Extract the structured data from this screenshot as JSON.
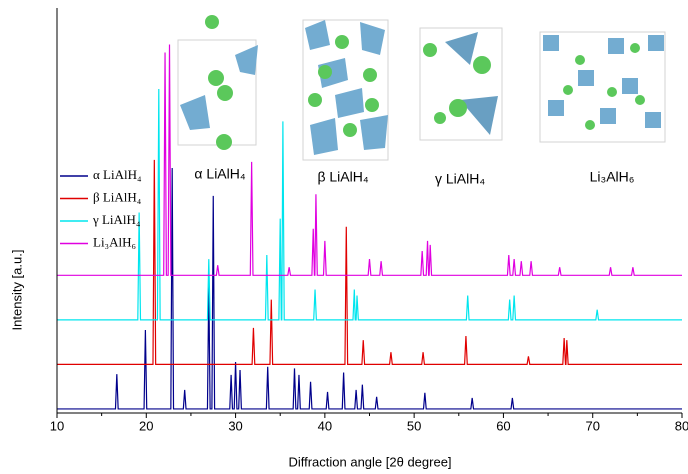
{
  "chart_data": {
    "type": "line",
    "xlabel": "Diffraction angle [2θ degree]",
    "ylabel": "Intensity [a.u.]",
    "xlim": [
      10,
      80
    ],
    "xticks": [
      10,
      20,
      30,
      40,
      50,
      60,
      70,
      80
    ],
    "ylim": [
      0,
      100
    ],
    "legend": "upper left",
    "annotations": [
      "α LiAlH₄",
      "β LiAlH₄",
      "γ LiAlH₄",
      "Li₃AlH₆"
    ],
    "series": [
      {
        "name": "α LiAlH₄",
        "color": "#00008b",
        "x": [
          10,
          16.55,
          16.7,
          16.85,
          19.75,
          19.9,
          20.05,
          22.75,
          22.9,
          23.05,
          24.15,
          24.3,
          24.45,
          26.85,
          27.0,
          27.15,
          27.35,
          27.5,
          27.65,
          29.35,
          29.5,
          29.65,
          29.85,
          30.0,
          30.15,
          30.35,
          30.5,
          30.65,
          33.45,
          33.6,
          33.75,
          36.45,
          36.6,
          36.75,
          36.95,
          37.1,
          37.25,
          38.25,
          38.4,
          38.55,
          40.15,
          40.3,
          40.45,
          41.95,
          42.1,
          42.25,
          43.35,
          43.5,
          43.65,
          44.05,
          44.2,
          44.35,
          45.65,
          45.8,
          45.95,
          51.05,
          51.2,
          51.35,
          56.35,
          56.5,
          56.65,
          60.85,
          61.0,
          61.15,
          80
        ],
        "values": [
          1,
          1,
          9.6,
          1,
          1,
          20.5,
          1,
          1,
          60.5,
          1,
          1,
          5.7,
          1,
          1,
          32,
          1,
          1,
          53.6,
          1,
          1,
          9.4,
          1,
          1,
          12.6,
          1,
          1,
          10.6,
          1,
          1,
          11.4,
          1,
          1,
          11,
          1,
          1,
          9.4,
          1,
          1,
          7.7,
          1,
          1,
          5.2,
          1,
          1,
          10,
          1,
          1,
          5.7,
          1,
          1,
          7,
          1,
          1,
          4,
          1,
          1,
          5,
          1,
          1,
          3.7,
          1,
          1,
          3.7,
          1,
          1
        ]
      },
      {
        "name": "β LiAlH₄",
        "color": "#e00000",
        "x": [
          10,
          20.75,
          20.9,
          21.05,
          31.85,
          32.0,
          32.15,
          33.85,
          34.0,
          34.15,
          42.25,
          42.4,
          42.55,
          44.15,
          44.3,
          44.45,
          47.25,
          47.4,
          47.55,
          50.85,
          51.0,
          51.15,
          55.65,
          55.8,
          55.95,
          62.65,
          62.8,
          62.95,
          66.65,
          66.8,
          66.95,
          67.0,
          67.1,
          67.25,
          80
        ],
        "values": [
          12,
          12,
          62.5,
          12,
          12,
          21,
          12,
          12,
          28,
          12,
          12,
          46,
          12,
          12,
          18,
          12,
          12,
          15,
          12,
          12,
          15,
          12,
          12,
          19,
          12,
          12,
          14,
          12,
          12,
          18.5,
          12,
          12,
          18,
          12,
          12
        ]
      },
      {
        "name": "γ LiAlH₄",
        "color": "#00e5ee",
        "x": [
          10,
          19.05,
          19.2,
          19.35,
          21.25,
          21.4,
          21.55,
          26.85,
          27.0,
          27.15,
          33.35,
          33.5,
          33.65,
          34.85,
          35.0,
          35.12,
          35.18,
          35.3,
          35.45,
          38.75,
          38.9,
          39.05,
          43.15,
          43.3,
          43.4,
          43.5,
          43.6,
          43.75,
          55.85,
          56.0,
          56.15,
          60.55,
          60.7,
          60.85,
          61.05,
          61.2,
          61.35,
          70.35,
          70.5,
          70.65,
          80
        ],
        "values": [
          23,
          23,
          49.5,
          23,
          23,
          80,
          23,
          23,
          38,
          23,
          23,
          39,
          23,
          23,
          48,
          23,
          23,
          72,
          23,
          23,
          30.5,
          23,
          23,
          30.5,
          23,
          23,
          29,
          23,
          23,
          29,
          23,
          23,
          28,
          23,
          23,
          29,
          23,
          23,
          25.5,
          23,
          23
        ]
      },
      {
        "name": "Li₃AlH₆",
        "color": "#e000e0",
        "x": [
          10,
          21.95,
          22.1,
          22.25,
          22.45,
          22.6,
          22.75,
          27.85,
          28.0,
          28.15,
          31.65,
          31.8,
          31.95,
          35.85,
          36.0,
          36.15,
          38.55,
          38.7,
          38.83,
          38.88,
          39.0,
          39.15,
          39.85,
          40.0,
          40.15,
          44.85,
          45.0,
          45.15,
          46.15,
          46.3,
          46.45,
          50.75,
          50.9,
          51.05,
          51.35,
          51.5,
          51.62,
          51.68,
          51.8,
          51.95,
          60.45,
          60.6,
          60.75,
          61.05,
          61.2,
          61.35,
          61.85,
          62.0,
          62.15,
          62.95,
          63.1,
          63.25,
          66.15,
          66.3,
          66.45,
          71.85,
          72.0,
          72.15,
          74.35,
          74.5,
          74.65,
          80
        ],
        "values": [
          34,
          34,
          89,
          34,
          34,
          91,
          34,
          34,
          36.5,
          34,
          34,
          62,
          34,
          34,
          36,
          34,
          34,
          45.5,
          34,
          34,
          54,
          34,
          34,
          42.5,
          34,
          34,
          38,
          34,
          34,
          37.5,
          34,
          34,
          40,
          34,
          34,
          42.5,
          34,
          34,
          41.5,
          34,
          34,
          39,
          34,
          34,
          38,
          34,
          34,
          37.5,
          34,
          34,
          37.5,
          34,
          34,
          36,
          34,
          34,
          36,
          34,
          34,
          36,
          34,
          34
        ]
      }
    ]
  }
}
